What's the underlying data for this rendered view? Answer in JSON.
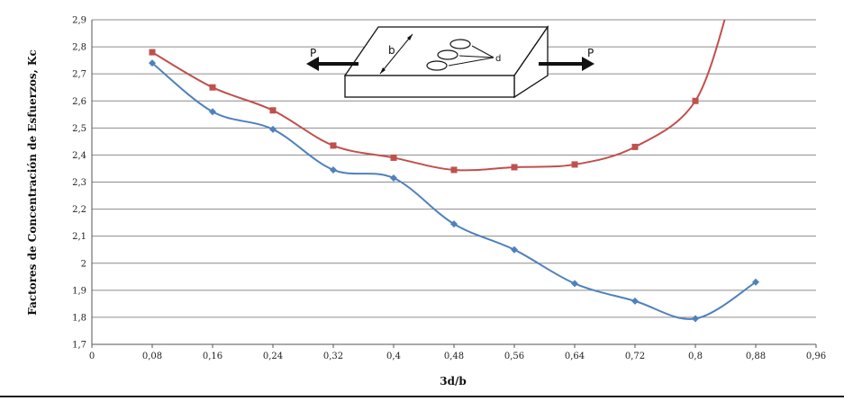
{
  "chart_data": {
    "type": "line",
    "xlabel": "3d/b",
    "ylabel": "Factores de Concentración de Esfuerzos, Kc",
    "xlim": [
      0,
      0.96
    ],
    "ylim": [
      1.7,
      2.9
    ],
    "x_ticks": [
      "0",
      "0,08",
      "0,16",
      "0,24",
      "0,32",
      "0,4",
      "0,48",
      "0,56",
      "0,64",
      "0,72",
      "0,8",
      "0,88",
      "0,96"
    ],
    "y_ticks": [
      "1,7",
      "1,8",
      "1,9",
      "2",
      "2,1",
      "2,2",
      "2,3",
      "2,4",
      "2,5",
      "2,6",
      "2,7",
      "2,8",
      "2,9"
    ],
    "grid": "horizontal",
    "legend": "none",
    "series": [
      {
        "color": "#4f81bd",
        "marker": "diamond",
        "x": [
          0.08,
          0.16,
          0.24,
          0.32,
          0.4,
          0.48,
          0.56,
          0.64,
          0.72,
          0.8,
          0.88
        ],
        "y": [
          2.74,
          2.56,
          2.495,
          2.345,
          2.315,
          2.145,
          2.05,
          1.925,
          1.86,
          1.795,
          1.93
        ]
      },
      {
        "color": "#c0504d",
        "marker": "square",
        "x": [
          0.08,
          0.16,
          0.24,
          0.32,
          0.4,
          0.48,
          0.56,
          0.64,
          0.72,
          0.8
        ],
        "y": [
          2.78,
          2.65,
          2.565,
          2.435,
          2.39,
          2.345,
          2.355,
          2.365,
          2.43,
          2.6
        ],
        "continues_above_ylim": true
      }
    ],
    "inset": {
      "description": "plate with three holes under tension",
      "labels": {
        "load_left": "P",
        "load_right": "P",
        "width": "b",
        "diameter": "d"
      }
    }
  }
}
